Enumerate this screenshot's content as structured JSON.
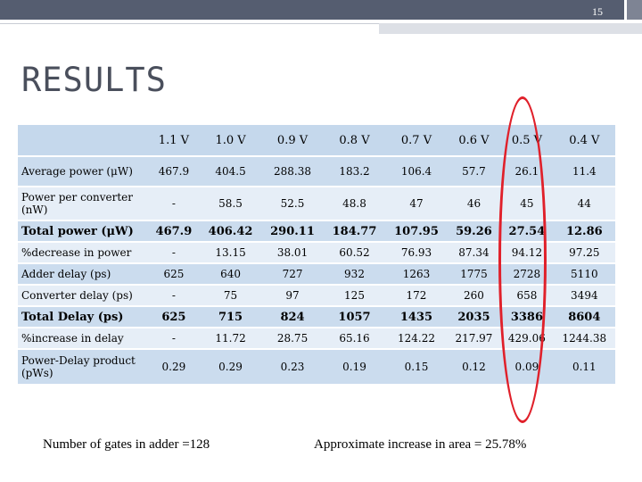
{
  "slide_number": "15",
  "title": "RESULTS",
  "table": {
    "headers": [
      "",
      "1.1 V",
      "1.0 V",
      "0.9 V",
      "0.8 V",
      "0.7 V",
      "0.6 V",
      "0.5 V",
      "0.4 V"
    ],
    "rows": [
      {
        "label": "Average power (μW)",
        "values": [
          "467.9",
          "404.5",
          "288.38",
          "183.2",
          "106.4",
          "57.7",
          "26.1",
          "11.4"
        ],
        "bold": false
      },
      {
        "label": "Power per converter (nW)",
        "values": [
          "-",
          "58.5",
          "52.5",
          "48.8",
          "47",
          "46",
          "45",
          "44"
        ],
        "bold": false
      },
      {
        "label": "Total power (μW)",
        "values": [
          "467.9",
          "406.42",
          "290.11",
          "184.77",
          "107.95",
          "59.26",
          "27.54",
          "12.86"
        ],
        "bold": true
      },
      {
        "label": "%decrease in power",
        "values": [
          "-",
          "13.15",
          "38.01",
          "60.52",
          "76.93",
          "87.34",
          "94.12",
          "97.25"
        ],
        "bold": false
      },
      {
        "label": "Adder delay (ps)",
        "values": [
          "625",
          "640",
          "727",
          "932",
          "1263",
          "1775",
          "2728",
          "5110"
        ],
        "bold": false
      },
      {
        "label": "Converter delay (ps)",
        "values": [
          "-",
          "75",
          "97",
          "125",
          "172",
          "260",
          "658",
          "3494"
        ],
        "bold": false
      },
      {
        "label": "Total Delay (ps)",
        "values": [
          "625",
          "715",
          "824",
          "1057",
          "1435",
          "2035",
          "3386",
          "8604"
        ],
        "bold": true
      },
      {
        "label": "%increase in delay",
        "values": [
          "-",
          "11.72",
          "28.75",
          "65.16",
          "124.22",
          "217.97",
          "429.06",
          "1244.38"
        ],
        "bold": false
      },
      {
        "label": "Power-Delay product (pWs)",
        "values": [
          "0.29",
          "0.29",
          "0.23",
          "0.19",
          "0.15",
          "0.12",
          "0.09",
          "0.11"
        ],
        "bold": false
      }
    ]
  },
  "footer": {
    "left": "Number of gates in adder =128",
    "right": "Approximate increase in area = 25.78%"
  },
  "colors": {
    "header_bg": "#c5d8ec",
    "row_odd": "#cbdcee",
    "row_even": "#e6eef7",
    "highlight_oval": "#e0202a",
    "topbar": "#555d70"
  }
}
